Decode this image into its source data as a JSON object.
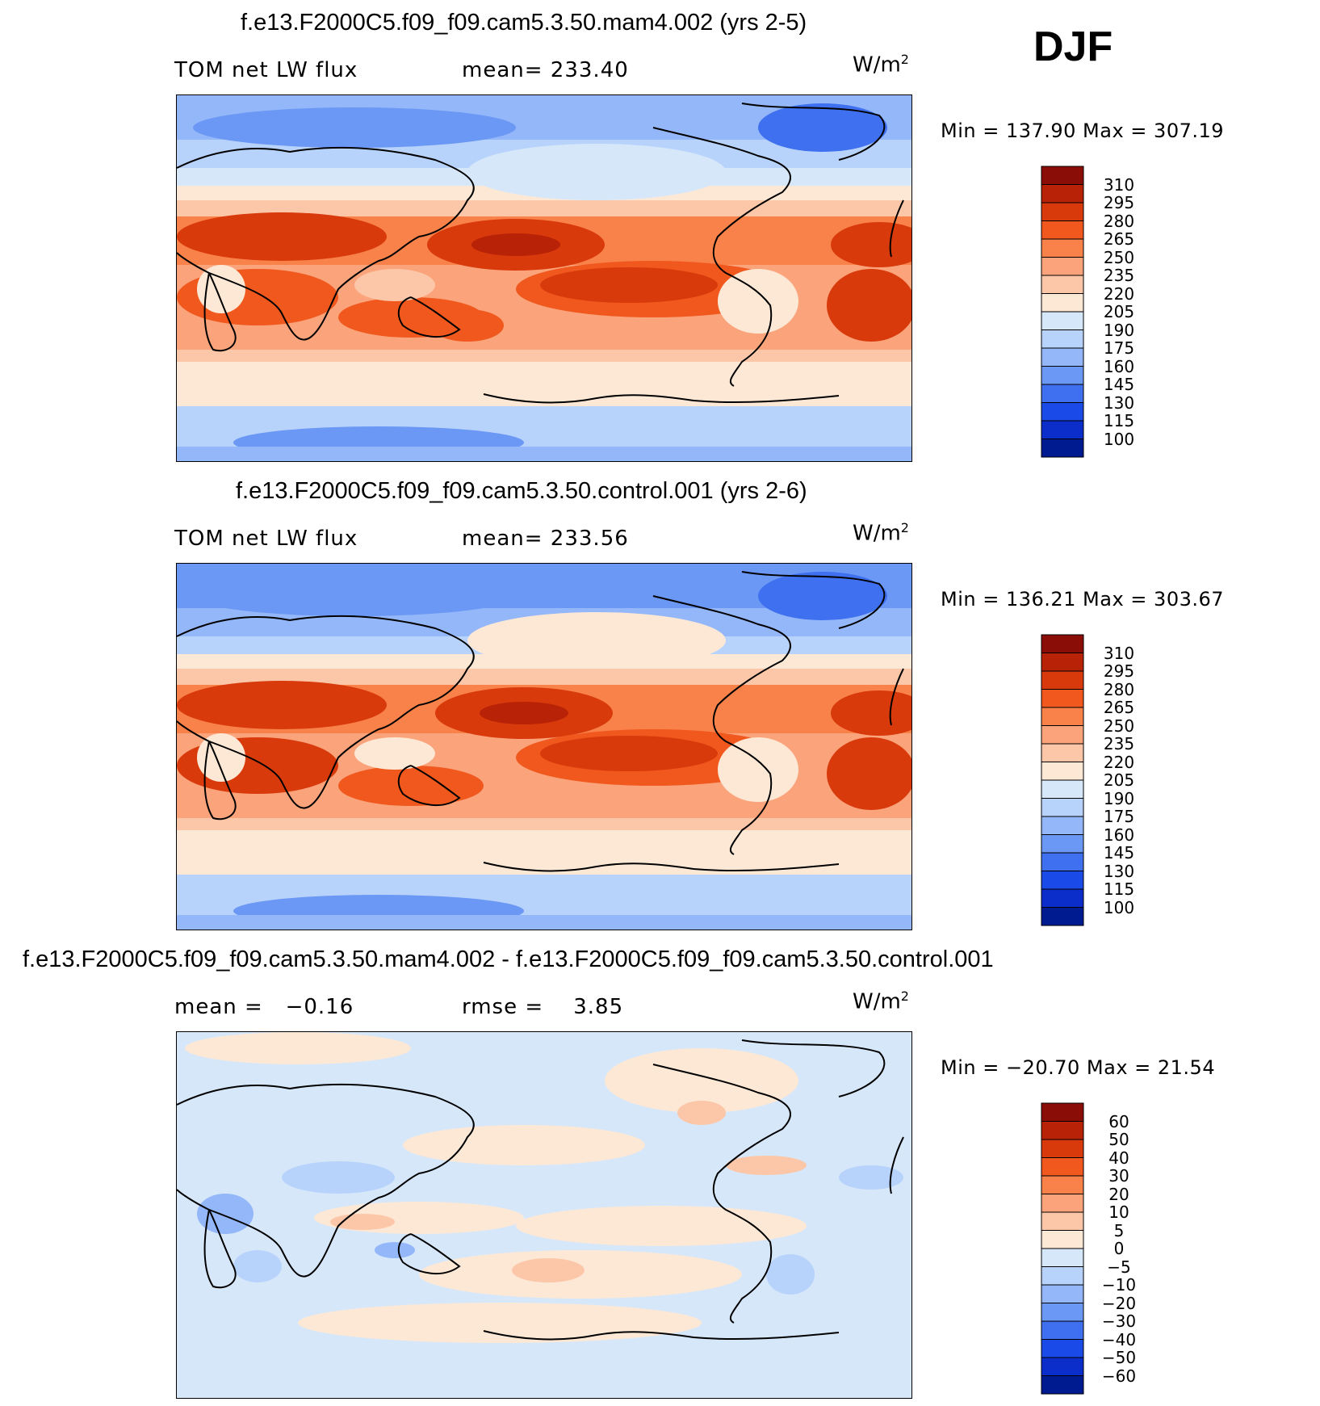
{
  "season": "DJF",
  "panels": [
    {
      "id": "test",
      "title": "f.e13.F2000C5.f09_f09.cam5.3.50.mam4.002 (yrs 2-5)",
      "left_label": "TOM net LW flux",
      "stat_label": "mean=",
      "stat_value": "233.40",
      "units": "W/m",
      "units_sup": "2",
      "minmax": "Min = 137.90 Max = 307.19",
      "colorbar_labels": [
        "310",
        "295",
        "280",
        "265",
        "250",
        "235",
        "220",
        "205",
        "190",
        "175",
        "160",
        "145",
        "130",
        "115",
        "100"
      ],
      "colorbar_colors": [
        "#8b0d07",
        "#b82206",
        "#d93a0c",
        "#f0581e",
        "#f9824a",
        "#fba37a",
        "#fcc7a8",
        "#fde8d6",
        "#d6e7fa",
        "#b8d3fb",
        "#93b7f8",
        "#6b97f5",
        "#3f70ef",
        "#1a4ae8",
        "#0b2dc9",
        "#001a90"
      ]
    },
    {
      "id": "control",
      "title": "f.e13.F2000C5.f09_f09.cam5.3.50.control.001 (yrs 2-6)",
      "left_label": "TOM net LW flux",
      "stat_label": "mean=",
      "stat_value": "233.56",
      "units": "W/m",
      "units_sup": "2",
      "minmax": "Min = 136.21 Max = 303.67",
      "colorbar_labels": [
        "310",
        "295",
        "280",
        "265",
        "250",
        "235",
        "220",
        "205",
        "190",
        "175",
        "160",
        "145",
        "130",
        "115",
        "100"
      ],
      "colorbar_colors": [
        "#8b0d07",
        "#b82206",
        "#d93a0c",
        "#f0581e",
        "#f9824a",
        "#fba37a",
        "#fcc7a8",
        "#fde8d6",
        "#d6e7fa",
        "#b8d3fb",
        "#93b7f8",
        "#6b97f5",
        "#3f70ef",
        "#1a4ae8",
        "#0b2dc9",
        "#001a90"
      ]
    },
    {
      "id": "diff",
      "title": "f.e13.F2000C5.f09_f09.cam5.3.50.mam4.002 - f.e13.F2000C5.f09_f09.cam5.3.50.control.001",
      "left_label": "mean =",
      "left_value": "−0.16",
      "stat_label": "rmse =",
      "stat_value": "3.85",
      "units": "W/m",
      "units_sup": "2",
      "minmax": "Min = −20.70 Max =  21.54",
      "colorbar_labels": [
        "60",
        "50",
        "40",
        "30",
        "20",
        "10",
        "5",
        "0",
        "−5",
        "−10",
        "−20",
        "−30",
        "−40",
        "−50",
        "−60"
      ],
      "colorbar_colors": [
        "#8b0d07",
        "#b82206",
        "#d93a0c",
        "#f0581e",
        "#f9824a",
        "#fba37a",
        "#fcc7a8",
        "#fde8d6",
        "#d6e7fa",
        "#b8d3fb",
        "#93b7f8",
        "#6b97f5",
        "#3f70ef",
        "#1a4ae8",
        "#0b2dc9",
        "#001a90"
      ]
    }
  ]
}
